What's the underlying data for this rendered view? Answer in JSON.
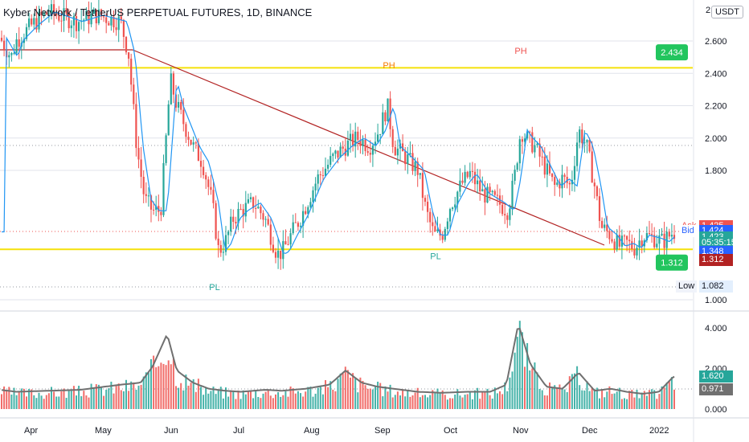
{
  "title": "Kyber Network / TetherUS PERPETUAL FUTURES, 1D, BINANCE",
  "currency_button": "USDT",
  "colors": {
    "up": "#26a69a",
    "down": "#ef5350",
    "level": "#f5e10a",
    "trend": "#b22222",
    "ma": "#2196f3",
    "vol_ma": "#707070",
    "grid": "#e0e3eb",
    "text": "#131722"
  },
  "chart_data": [
    {
      "type": "candlestick",
      "title": "Kyber Network / TetherUS PERPETUAL FUTURES, 1D, BINANCE",
      "price_axis": {
        "ticks": [
          "2.600",
          "2.400",
          "2.200",
          "2.000",
          "1.800",
          "1.000"
        ],
        "top_tick_fragment": "2"
      },
      "time_axis": [
        "Apr",
        "May",
        "Jun",
        "Jul",
        "Aug",
        "Sep",
        "Oct",
        "Nov",
        "Dec",
        "2022"
      ],
      "price_path": [
        [
          0,
          2.62
        ],
        [
          14,
          2.5
        ],
        [
          20,
          2.6
        ],
        [
          40,
          2.7
        ],
        [
          60,
          2.78
        ],
        [
          95,
          2.72
        ],
        [
          120,
          2.76
        ],
        [
          150,
          2.72
        ],
        [
          160,
          2.52
        ],
        [
          170,
          1.95
        ],
        [
          180,
          1.62
        ],
        [
          190,
          1.55
        ],
        [
          200,
          1.55
        ],
        [
          212,
          2.36
        ],
        [
          220,
          2.2
        ],
        [
          232,
          2.05
        ],
        [
          240,
          1.95
        ],
        [
          252,
          1.85
        ],
        [
          264,
          1.6
        ],
        [
          272,
          1.3
        ],
        [
          280,
          1.35
        ],
        [
          290,
          1.5
        ],
        [
          300,
          1.55
        ],
        [
          316,
          1.6
        ],
        [
          330,
          1.5
        ],
        [
          345,
          1.28
        ],
        [
          352,
          1.3
        ],
        [
          362,
          1.4
        ],
        [
          375,
          1.52
        ],
        [
          395,
          1.75
        ],
        [
          415,
          1.88
        ],
        [
          430,
          1.95
        ],
        [
          445,
          2.0
        ],
        [
          460,
          1.95
        ],
        [
          472,
          2.05
        ],
        [
          482,
          2.2
        ],
        [
          490,
          1.95
        ],
        [
          505,
          1.88
        ],
        [
          520,
          1.8
        ],
        [
          530,
          1.55
        ],
        [
          540,
          1.4
        ],
        [
          550,
          1.4
        ],
        [
          560,
          1.58
        ],
        [
          575,
          1.72
        ],
        [
          585,
          1.78
        ],
        [
          600,
          1.66
        ],
        [
          620,
          1.6
        ],
        [
          632,
          1.55
        ],
        [
          640,
          1.75
        ],
        [
          648,
          2.05
        ],
        [
          655,
          2.0
        ],
        [
          665,
          1.95
        ],
        [
          680,
          1.8
        ],
        [
          690,
          1.7
        ],
        [
          700,
          1.75
        ],
        [
          710,
          1.7
        ],
        [
          720,
          2.05
        ],
        [
          730,
          1.95
        ],
        [
          740,
          1.7
        ],
        [
          748,
          1.45
        ],
        [
          760,
          1.4
        ],
        [
          770,
          1.33
        ],
        [
          780,
          1.35
        ],
        [
          790,
          1.32
        ],
        [
          800,
          1.4
        ],
        [
          815,
          1.38
        ],
        [
          825,
          1.36
        ],
        [
          838,
          1.42
        ]
      ],
      "levels": [
        {
          "name": "upper-level",
          "price": 2.434
        },
        {
          "name": "lower-level",
          "price": 1.312
        }
      ],
      "annotations": [
        {
          "text": "PH",
          "x_index": 484,
          "price": 2.43
        },
        {
          "text": "PH",
          "x_index": 648,
          "price": 2.52
        },
        {
          "text": "PL",
          "x_index": 267,
          "price": 1.06
        },
        {
          "text": "PL",
          "x_index": 542,
          "price": 1.25
        }
      ],
      "price_labels": [
        {
          "text": "Ask",
          "kind": "label",
          "price": 1.456
        },
        {
          "text": "1.425",
          "kind": "down",
          "price": 1.456
        },
        {
          "text": "Bid",
          "kind": "label-blue",
          "price": 1.425
        },
        {
          "text": "1.424",
          "kind": "blue",
          "price": 1.425
        },
        {
          "text": "1.423",
          "kind": "up",
          "price": 1.387
        },
        {
          "text": "05:35:15",
          "kind": "up",
          "price": 1.353
        },
        {
          "text": "1.348",
          "kind": "blue",
          "price": 1.3
        },
        {
          "text": "1.312",
          "kind": "dark-red",
          "price": 1.25
        },
        {
          "text": "Low",
          "kind": "label-gray",
          "price": 1.082
        },
        {
          "text": "1.082",
          "kind": "light",
          "price": 1.082
        }
      ],
      "callouts": [
        {
          "text": "2.434",
          "x_index": 836,
          "price": 2.53
        },
        {
          "text": "1.312",
          "x_index": 836,
          "price": 1.23
        }
      ]
    },
    {
      "type": "bar",
      "name": "volume",
      "axis_ticks": [
        "4.000",
        "2.000",
        "0.000"
      ],
      "values_path": [
        [
          0,
          0.95
        ],
        [
          20,
          0.85
        ],
        [
          60,
          0.9
        ],
        [
          100,
          0.95
        ],
        [
          150,
          1.2
        ],
        [
          175,
          1.3
        ],
        [
          190,
          2.1
        ],
        [
          208,
          3.7
        ],
        [
          220,
          1.9
        ],
        [
          240,
          1.3
        ],
        [
          260,
          1.0
        ],
        [
          280,
          0.9
        ],
        [
          300,
          0.85
        ],
        [
          330,
          0.95
        ],
        [
          350,
          0.9
        ],
        [
          380,
          1.0
        ],
        [
          410,
          1.2
        ],
        [
          430,
          1.9
        ],
        [
          450,
          1.3
        ],
        [
          470,
          1.1
        ],
        [
          490,
          1.0
        ],
        [
          520,
          0.85
        ],
        [
          550,
          0.8
        ],
        [
          580,
          0.85
        ],
        [
          610,
          0.85
        ],
        [
          630,
          1.2
        ],
        [
          645,
          4.2
        ],
        [
          660,
          2.2
        ],
        [
          680,
          1.1
        ],
        [
          700,
          1.0
        ],
        [
          720,
          1.8
        ],
        [
          740,
          0.9
        ],
        [
          760,
          1.0
        ],
        [
          780,
          0.85
        ],
        [
          800,
          0.75
        ],
        [
          820,
          0.85
        ],
        [
          838,
          1.6
        ]
      ],
      "labels": [
        {
          "text": "1.620",
          "kind": "up",
          "value": 1.62
        },
        {
          "text": "0.971",
          "kind": "gray",
          "value": 0.971
        }
      ]
    }
  ]
}
